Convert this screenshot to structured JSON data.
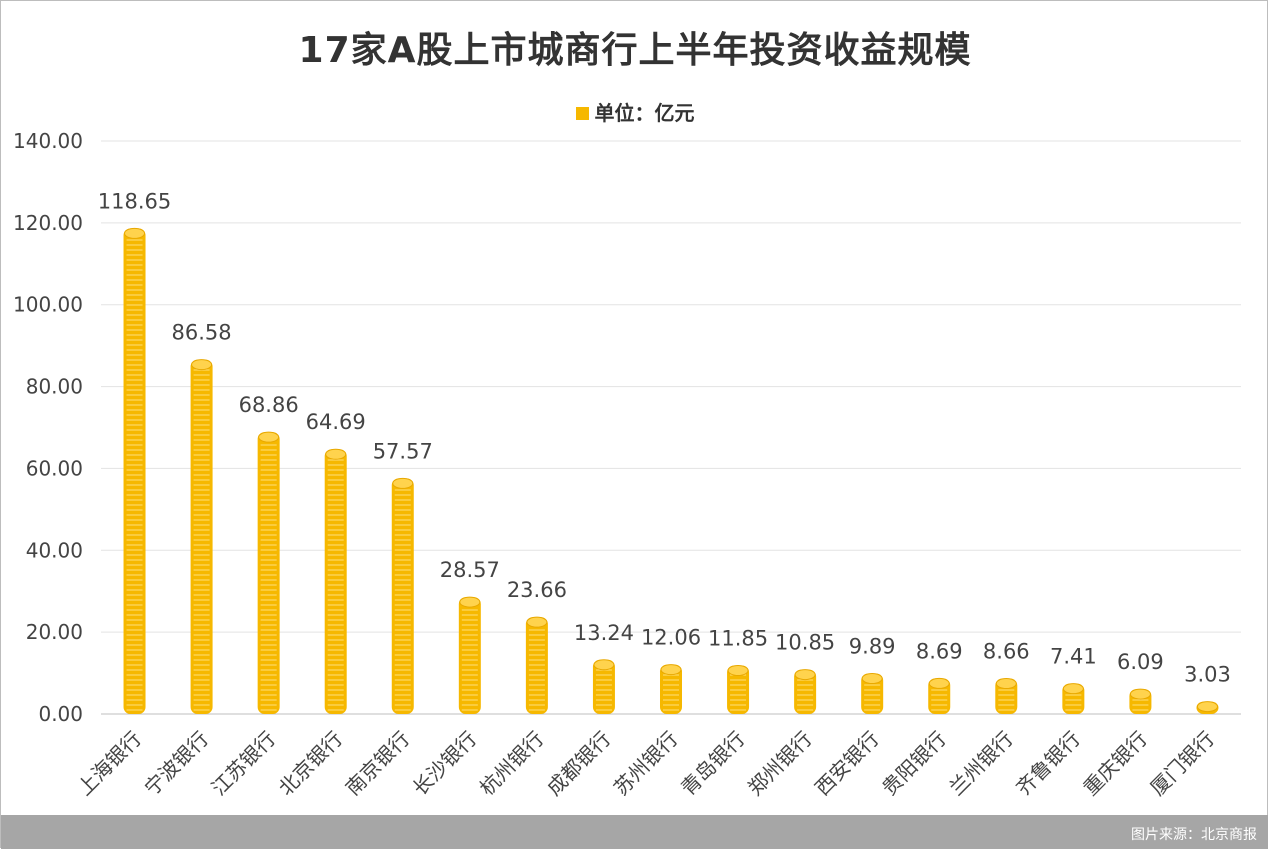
{
  "chart_data": {
    "type": "bar",
    "title": "17家A股上市城商行上半年投资收益规模",
    "legend": "单位：亿元",
    "legend_position": "top-center",
    "categories": [
      "上海银行",
      "宁波银行",
      "江苏银行",
      "北京银行",
      "南京银行",
      "长沙银行",
      "杭州银行",
      "成都银行",
      "苏州银行",
      "青岛银行",
      "郑州银行",
      "西安银行",
      "贵阳银行",
      "兰州银行",
      "齐鲁银行",
      "重庆银行",
      "厦门银行"
    ],
    "values": [
      118.65,
      86.58,
      68.86,
      64.69,
      57.57,
      28.57,
      23.66,
      13.24,
      12.06,
      11.85,
      10.85,
      9.89,
      8.69,
      8.66,
      7.41,
      6.09,
      3.03
    ],
    "data_labels": [
      "118.65",
      "86.58",
      "68.86",
      "64.69",
      "57.57",
      "28.57",
      "23.66",
      "13.24",
      "12.06",
      "11.85",
      "10.85",
      "9.89",
      "8.69",
      "8.66",
      "7.41",
      "6.09",
      "3.03"
    ],
    "yticks": [
      "0.00",
      "20.00",
      "40.00",
      "60.00",
      "80.00",
      "100.00",
      "120.00",
      "140.00"
    ],
    "ylim": [
      0,
      140
    ],
    "grid": true,
    "bar_color": "#f6b800"
  },
  "source": "图片来源：北京商报"
}
